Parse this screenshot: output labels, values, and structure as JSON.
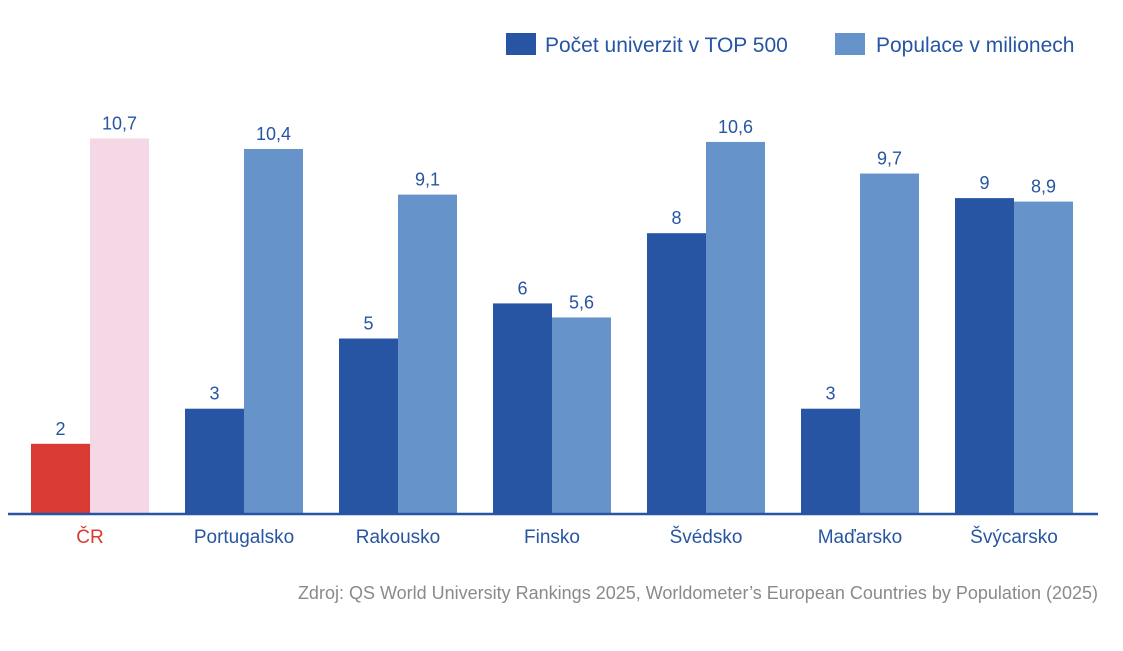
{
  "chart_data": {
    "type": "bar",
    "title": "",
    "xlabel": "",
    "ylabel": "",
    "ylim": [
      0,
      12
    ],
    "grid": false,
    "legend_position": "top-right",
    "categories": [
      "ČR",
      "Portugalsko",
      "Rakousko",
      "Finsko",
      "Švédsko",
      "Maďarsko",
      "Švýcarsko"
    ],
    "series": [
      {
        "name": "Počet univerzit v TOP 500",
        "color": "#2755a3",
        "values": [
          2,
          3,
          5,
          6,
          8,
          3,
          9
        ],
        "labels": [
          "2",
          "3",
          "5",
          "6",
          "8",
          "3",
          "9"
        ]
      },
      {
        "name": "Populace v milionech",
        "color": "#6793cb",
        "values": [
          10.7,
          10.4,
          9.1,
          5.6,
          10.6,
          9.7,
          8.9
        ],
        "labels": [
          "10,7",
          "10,4",
          "9,1",
          "5,6",
          "10,6",
          "9,7",
          "8,9"
        ]
      }
    ],
    "highlight": {
      "category": "ČR",
      "series_colors": [
        "#d93a33",
        "#f5d8e6"
      ],
      "label_color": "#d93a33"
    },
    "source": "Zdroj: QS World University Rankings 2025, Worldometer’s European Countries by Population (2025)"
  },
  "colors": {
    "axis": "#2755a3",
    "text": "#2755a3",
    "source": "#8a8a8a"
  }
}
